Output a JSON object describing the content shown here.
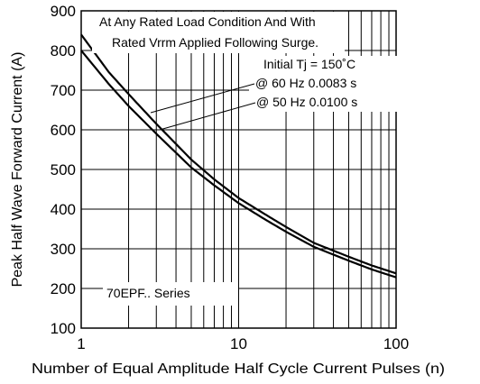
{
  "chart_data": {
    "type": "line",
    "xscale": "log",
    "xlim": [
      1,
      100
    ],
    "ylim": [
      100,
      900
    ],
    "xticks": [
      1,
      10,
      100
    ],
    "xtick_labels": [
      "1",
      "10",
      "100"
    ],
    "yticks": [
      100,
      200,
      300,
      400,
      500,
      600,
      700,
      800,
      900
    ],
    "ytick_labels": [
      "100",
      "200",
      "300",
      "400",
      "500",
      "600",
      "700",
      "800",
      "900"
    ],
    "xlabel": "Number of Equal Amplitude Half Cycle Current Pulses (n)",
    "ylabel": "Peak Half Wave Forward Current (A)",
    "grid": true,
    "annotations": [
      "At Any Rated Load Condition And With",
      "Rated Vrrm Applied Following Surge.",
      "Initial Tj = 150˚C",
      "@ 60 Hz 0.0083 s",
      "@ 50 Hz 0.0100 s",
      "70EPF.. Series"
    ],
    "series": [
      {
        "name": "@ 60 Hz 0.0083 s",
        "x": [
          1,
          1.5,
          2,
          3,
          5,
          7,
          10,
          15,
          20,
          30,
          50,
          70,
          100
        ],
        "y": [
          840,
          745,
          690,
          615,
          525,
          475,
          428,
          385,
          355,
          315,
          280,
          258,
          238
        ]
      },
      {
        "name": "@ 50 Hz 0.0100 s",
        "x": [
          1,
          1.5,
          2,
          3,
          5,
          7,
          10,
          15,
          20,
          30,
          50,
          70,
          100
        ],
        "y": [
          800,
          715,
          660,
          590,
          505,
          460,
          415,
          372,
          343,
          305,
          270,
          248,
          228
        ]
      }
    ]
  }
}
